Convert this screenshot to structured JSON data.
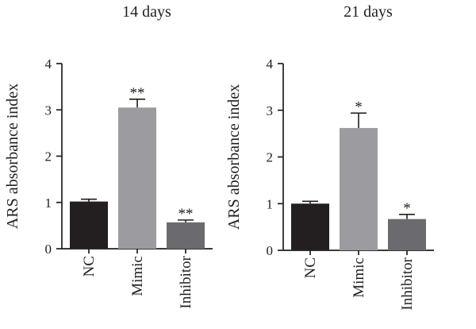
{
  "chart_data": [
    {
      "type": "bar",
      "title": "14 days",
      "ylabel": "ARS absorbance index",
      "xlabel": "",
      "ylim": [
        0,
        4
      ],
      "yticks": [
        "0",
        "1",
        "2",
        "3",
        "4"
      ],
      "categories": [
        "NC",
        "Mimic",
        "Inhibitor"
      ],
      "values": [
        1.02,
        3.05,
        0.57
      ],
      "errors": [
        0.05,
        0.18,
        0.05
      ],
      "significance": [
        "",
        "**",
        "**"
      ],
      "colors": [
        "#231f20",
        "#9b9ba0",
        "#6b6b6f"
      ]
    },
    {
      "type": "bar",
      "title": "21 days",
      "ylabel": "ARS absorbance index",
      "xlabel": "",
      "ylim": [
        0,
        4
      ],
      "yticks": [
        "0",
        "1",
        "2",
        "3",
        "4"
      ],
      "categories": [
        "NC",
        "Mimic",
        "Inhibitor"
      ],
      "values": [
        1.0,
        2.62,
        0.67
      ],
      "errors": [
        0.05,
        0.32,
        0.1
      ],
      "significance": [
        "",
        "*",
        "*"
      ],
      "colors": [
        "#231f20",
        "#9b9ba0",
        "#6b6b6f"
      ]
    }
  ]
}
